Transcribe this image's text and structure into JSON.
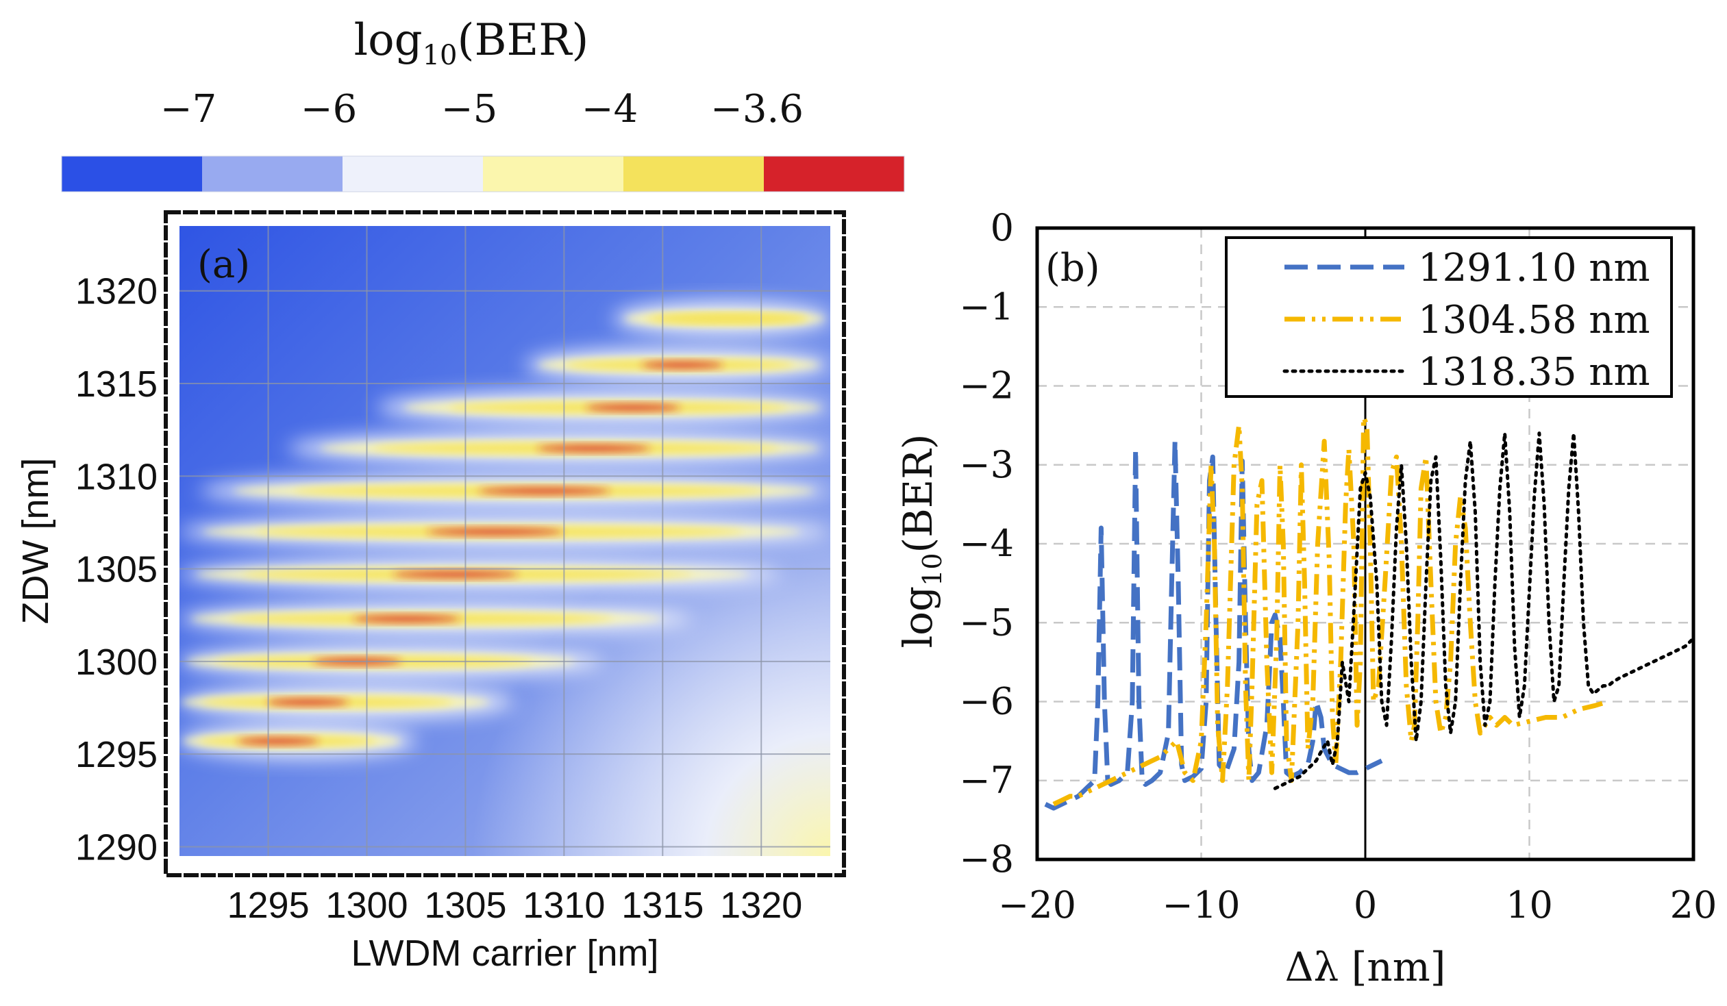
{
  "colorbar": {
    "title_base": "log",
    "title_sub": "10",
    "title_rest": "(BER)",
    "tick_labels": [
      "−7",
      "−6",
      "−5",
      "−4",
      "−3.6"
    ],
    "bins": [
      {
        "from": -7.5,
        "to": -7,
        "color": "#2b50e6"
      },
      {
        "from": -7,
        "to": -6,
        "color": "#98aaf0"
      },
      {
        "from": -6,
        "to": -5,
        "color": "#eef1fb"
      },
      {
        "from": -5,
        "to": -4,
        "color": "#fbf6ad"
      },
      {
        "from": -4,
        "to": -3.6,
        "color": "#f4e25c"
      },
      {
        "from": -3.6,
        "to": -3,
        "color": "#d6222a"
      }
    ]
  },
  "chart_data": [
    {
      "type": "heatmap",
      "panel_label": "(a)",
      "xlabel": "LWDM carrier [nm]",
      "ylabel": "ZDW [nm]",
      "xlim": [
        1290.5,
        1323.5
      ],
      "ylim": [
        1289.5,
        1323.5
      ],
      "xticks": [
        1295,
        1300,
        1305,
        1310,
        1315,
        1320
      ],
      "yticks": [
        1290,
        1295,
        1300,
        1305,
        1310,
        1315,
        1320
      ],
      "xtick_labels": [
        "1295",
        "1300",
        "1305",
        "1310",
        "1315",
        "1320"
      ],
      "ytick_labels": [
        "1290",
        "1295",
        "1300",
        "1305",
        "1310",
        "1315",
        "1320"
      ],
      "grid": true,
      "background_low_value": -7.3,
      "bands": [
        {
          "zdw": 1318.5,
          "x_start": 1312.5,
          "x_end": 1323.5,
          "peak_x": 1318.5,
          "min_log10_ber": -3.8
        },
        {
          "zdw": 1316.0,
          "x_start": 1308.0,
          "x_end": 1323.5,
          "peak_x": 1316.0,
          "min_log10_ber": -3.4
        },
        {
          "zdw": 1313.7,
          "x_start": 1300.5,
          "x_end": 1323.5,
          "peak_x": 1313.5,
          "min_log10_ber": -3.5
        },
        {
          "zdw": 1311.5,
          "x_start": 1296.0,
          "x_end": 1323.5,
          "peak_x": 1311.5,
          "min_log10_ber": -3.0
        },
        {
          "zdw": 1309.2,
          "x_start": 1291.5,
          "x_end": 1323.5,
          "peak_x": 1309.0,
          "min_log10_ber": -3.2
        },
        {
          "zdw": 1307.0,
          "x_start": 1290.5,
          "x_end": 1323.5,
          "peak_x": 1306.5,
          "min_log10_ber": -3.1
        },
        {
          "zdw": 1304.7,
          "x_start": 1290.5,
          "x_end": 1321.0,
          "peak_x": 1304.5,
          "min_log10_ber": -3.2
        },
        {
          "zdw": 1302.3,
          "x_start": 1290.5,
          "x_end": 1316.5,
          "peak_x": 1302.0,
          "min_log10_ber": -3.0
        },
        {
          "zdw": 1300.0,
          "x_start": 1290.5,
          "x_end": 1312.0,
          "peak_x": 1299.5,
          "min_log10_ber": -3.1
        },
        {
          "zdw": 1297.8,
          "x_start": 1290.5,
          "x_end": 1307.5,
          "peak_x": 1297.0,
          "min_log10_ber": -3.3
        },
        {
          "zdw": 1295.7,
          "x_start": 1290.5,
          "x_end": 1302.5,
          "peak_x": 1295.5,
          "min_log10_ber": -3.5
        }
      ]
    },
    {
      "type": "line",
      "panel_label": "(b)",
      "xlabel": "Δλ [nm]",
      "ylabel_base": "log",
      "ylabel_sub": "10",
      "ylabel_rest": "(BER)",
      "xlim": [
        -20,
        20
      ],
      "ylim": [
        -8,
        0
      ],
      "xticks": [
        -20,
        -10,
        0,
        10,
        20
      ],
      "yticks": [
        0,
        -1,
        -2,
        -3,
        -4,
        -5,
        -6,
        -7,
        -8
      ],
      "xtick_labels": [
        "−20",
        "−10",
        "0",
        "10",
        "20"
      ],
      "ytick_labels": [
        "0",
        "−1",
        "−2",
        "−3",
        "−4",
        "−5",
        "−6",
        "−7",
        "−8"
      ],
      "grid": true,
      "legend_position": "top-right",
      "series": [
        {
          "name": "1291.10 nm",
          "color": "#4472c4",
          "dash": "dashed",
          "x": [
            -19.5,
            -19,
            -18.5,
            -18,
            -17.5,
            -17,
            -16.5,
            -16.3,
            -16.1,
            -15.9,
            -15.7,
            -15.5,
            -15,
            -14.5,
            -14.2,
            -14.0,
            -13.8,
            -13.6,
            -13.4,
            -13,
            -12.5,
            -12.0,
            -11.8,
            -11.6,
            -11.4,
            -11.2,
            -11.0,
            -10.5,
            -10.0,
            -9.7,
            -9.5,
            -9.3,
            -9.1,
            -8.9,
            -8.5,
            -8.0,
            -7.7,
            -7.5,
            -7.3,
            -7.1,
            -6.9,
            -6.5,
            -6.0,
            -5.7,
            -5.5,
            -5.2,
            -5.0,
            -4.8,
            -4.5,
            -4.0,
            -3.5,
            -3.2,
            -3.0,
            -2.7,
            -2.5,
            -2.0,
            -1.5,
            -1.0,
            -0.5,
            0,
            0.5,
            1.0
          ],
          "y": [
            -7.3,
            -7.35,
            -7.3,
            -7.25,
            -7.2,
            -7.1,
            -7.0,
            -6.0,
            -3.8,
            -6.0,
            -7.0,
            -7.05,
            -7.0,
            -6.9,
            -6.0,
            -2.8,
            -6.0,
            -7.0,
            -7.05,
            -7.0,
            -6.9,
            -6.4,
            -4.5,
            -2.7,
            -4.5,
            -6.8,
            -7.0,
            -6.95,
            -6.85,
            -6.0,
            -3.2,
            -2.9,
            -5.0,
            -6.8,
            -6.9,
            -6.6,
            -5.5,
            -2.95,
            -5.0,
            -6.6,
            -7.0,
            -6.9,
            -6.3,
            -5.0,
            -4.9,
            -5.2,
            -6.0,
            -6.9,
            -6.95,
            -6.9,
            -6.8,
            -6.5,
            -6.0,
            -6.2,
            -6.6,
            -6.8,
            -6.85,
            -6.9,
            -6.9,
            -6.85,
            -6.8,
            -6.75
          ]
        },
        {
          "name": "1304.58 nm",
          "color": "#f5b800",
          "dash": "dash-dot-dot",
          "x": [
            -19,
            -18.5,
            -18,
            -17.5,
            -17,
            -16.5,
            -16,
            -15.5,
            -15,
            -14.5,
            -14,
            -13.5,
            -13,
            -12.5,
            -12,
            -11.5,
            -11,
            -10.5,
            -10.0,
            -9.7,
            -9.4,
            -9.2,
            -9.0,
            -8.7,
            -8.4,
            -8.0,
            -7.7,
            -7.5,
            -7.3,
            -7.1,
            -6.9,
            -6.6,
            -6.3,
            -6.0,
            -5.7,
            -5.4,
            -5.2,
            -5.0,
            -4.8,
            -4.5,
            -4.1,
            -3.9,
            -3.7,
            -3.5,
            -3.2,
            -2.9,
            -2.5,
            -2.2,
            -2.0,
            -1.8,
            -1.5,
            -1.2,
            -1.0,
            -0.7,
            -0.5,
            -0.3,
            -0.1,
            0.1,
            0.3,
            0.5,
            0.8,
            1.2,
            1.6,
            1.9,
            2.2,
            2.5,
            2.8,
            3.0,
            3.2,
            3.4,
            3.7,
            4.0,
            4.3,
            4.6,
            4.9,
            5.2,
            5.5,
            5.8,
            6.1,
            6.4,
            6.7,
            7.0,
            7.3,
            7.6,
            8.0,
            8.5,
            9.0,
            10.0,
            11.0,
            12.0,
            13.0,
            14.0,
            14.8
          ],
          "y": [
            -7.3,
            -7.25,
            -7.2,
            -7.2,
            -7.15,
            -7.1,
            -7.05,
            -7.0,
            -6.95,
            -6.9,
            -6.85,
            -6.8,
            -6.75,
            -6.7,
            -6.6,
            -6.5,
            -6.9,
            -7.0,
            -6.5,
            -5.0,
            -3.0,
            -4.0,
            -6.3,
            -7.0,
            -5.8,
            -3.0,
            -2.5,
            -3.3,
            -5.8,
            -7.0,
            -5.8,
            -3.5,
            -3.2,
            -5.5,
            -6.9,
            -5.2,
            -3.0,
            -4.0,
            -6.5,
            -7.0,
            -5.0,
            -3.0,
            -4.5,
            -6.6,
            -6.0,
            -4.0,
            -2.7,
            -4.2,
            -6.2,
            -6.8,
            -5.5,
            -3.5,
            -2.8,
            -4.0,
            -6.3,
            -5.5,
            -2.4,
            -2.5,
            -4.0,
            -6.0,
            -5.8,
            -4.5,
            -3.1,
            -2.9,
            -4.0,
            -5.8,
            -6.5,
            -6.3,
            -5.0,
            -3.3,
            -2.9,
            -4.5,
            -6.0,
            -6.4,
            -6.2,
            -5.5,
            -4.0,
            -3.4,
            -3.8,
            -5.0,
            -6.0,
            -6.4,
            -6.3,
            -6.2,
            -6.3,
            -6.2,
            -6.3,
            -6.25,
            -6.2,
            -6.2,
            -6.1,
            -6.05,
            -6.0
          ]
        },
        {
          "name": "1318.35 nm",
          "color": "#000000",
          "dash": "dotted",
          "x": [
            -5.5,
            -5,
            -4.5,
            -4,
            -3.5,
            -3,
            -2.6,
            -2.3,
            -2.0,
            -1.7,
            -1.4,
            -1.0,
            -0.6,
            -0.3,
            0,
            0.3,
            0.7,
            1.0,
            1.3,
            1.6,
            1.9,
            2.2,
            2.5,
            2.8,
            3.1,
            3.4,
            3.7,
            4.0,
            4.3,
            4.6,
            4.9,
            5.2,
            5.5,
            5.8,
            6.1,
            6.4,
            6.7,
            7.0,
            7.3,
            7.6,
            7.9,
            8.2,
            8.5,
            8.8,
            9.1,
            9.4,
            9.7,
            10.0,
            10.3,
            10.6,
            10.9,
            11.2,
            11.5,
            11.8,
            12.1,
            12.4,
            12.7,
            13.0,
            13.3,
            13.6,
            13.9,
            14.2,
            14.5,
            14.8,
            15.1,
            15.5,
            16.5,
            17.5,
            18.5,
            19.5,
            20
          ],
          "y": [
            -7.1,
            -7.05,
            -7.0,
            -6.95,
            -6.85,
            -6.75,
            -6.6,
            -6.5,
            -6.8,
            -6.5,
            -5.5,
            -6.0,
            -4.5,
            -3.3,
            -3.1,
            -3.4,
            -4.5,
            -6.0,
            -6.3,
            -5.2,
            -3.8,
            -3.0,
            -4.0,
            -5.5,
            -6.5,
            -6.0,
            -4.5,
            -3.2,
            -2.9,
            -4.2,
            -5.8,
            -6.4,
            -6.0,
            -4.5,
            -3.2,
            -2.7,
            -3.6,
            -5.5,
            -6.3,
            -6.0,
            -4.5,
            -3.3,
            -2.6,
            -3.6,
            -5.3,
            -6.2,
            -5.8,
            -4.6,
            -3.4,
            -2.6,
            -3.5,
            -5.0,
            -6.0,
            -5.8,
            -4.5,
            -3.3,
            -2.6,
            -3.6,
            -5.0,
            -5.8,
            -5.9,
            -5.85,
            -5.8,
            -5.8,
            -5.75,
            -5.7,
            -5.6,
            -5.5,
            -5.4,
            -5.3,
            -5.2
          ]
        }
      ]
    }
  ]
}
